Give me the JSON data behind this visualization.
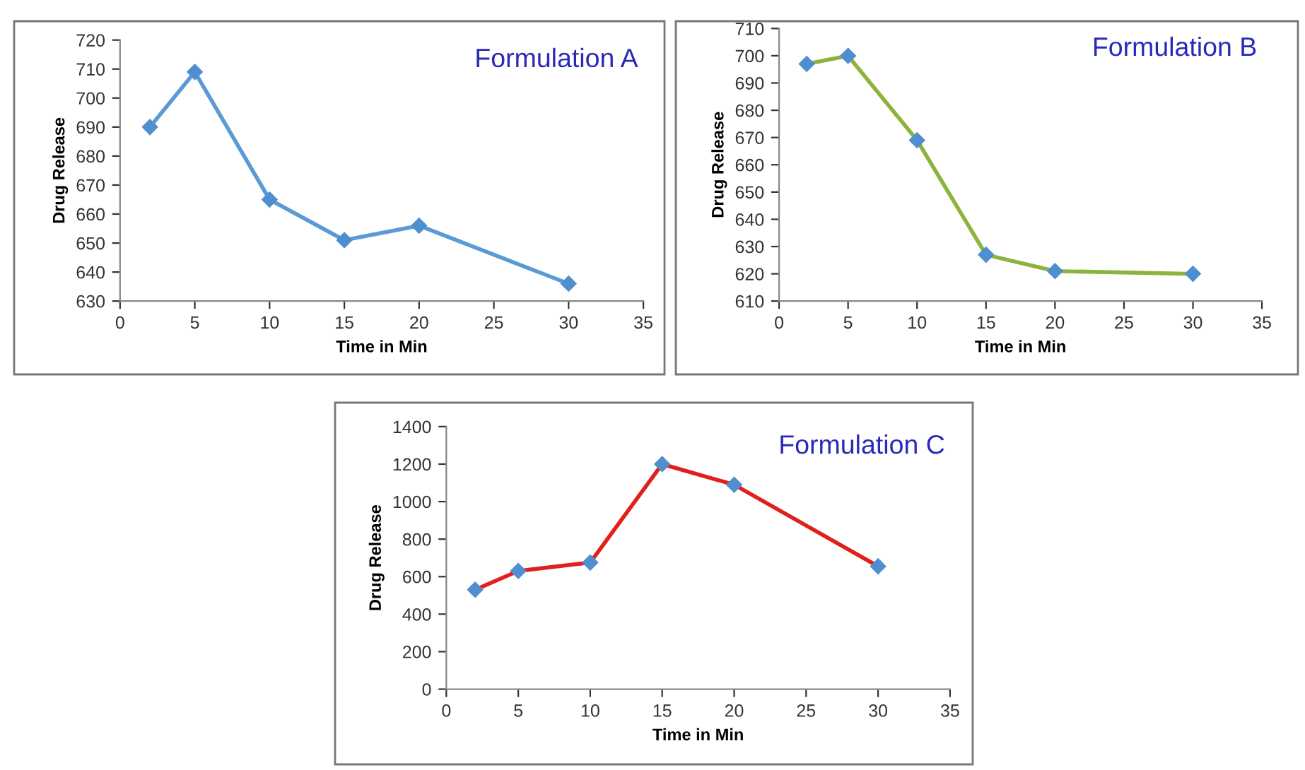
{
  "chart_data": [
    {
      "type": "line",
      "title": "Formulation A",
      "xlabel": "Time in Min",
      "ylabel": "Drug Release",
      "x": [
        2,
        5,
        10,
        15,
        20,
        30
      ],
      "series": [
        {
          "color": "#5b9bd5",
          "colors": [
            "#4f8fcf",
            "#4f8fcf",
            "#4f8fcf",
            "#4f8fcf",
            "#4f8fcf",
            "#4f8fcf"
          ],
          "values": [
            690,
            709,
            665,
            651,
            656,
            636
          ]
        }
      ],
      "xlim": [
        0,
        35
      ],
      "xticks": [
        0,
        5,
        10,
        15,
        20,
        25,
        30,
        35
      ],
      "ylim": [
        630,
        720
      ],
      "yticks": [
        630,
        640,
        650,
        660,
        670,
        680,
        690,
        700,
        710,
        720
      ],
      "marker": "diamond",
      "line_style": "solid",
      "grid": false,
      "legend": false
    },
    {
      "type": "line",
      "title": "Formulation B",
      "xlabel": "Time in Min",
      "ylabel": "Drug Release",
      "x": [
        2,
        5,
        10,
        15,
        20,
        30
      ],
      "series": [
        {
          "color": "#8cb43c",
          "colors": [
            "#4f8fcf",
            "#4f8fcf",
            "#4f8fcf",
            "#4f8fcf",
            "#4f8fcf",
            "#4f8fcf"
          ],
          "values": [
            697,
            700,
            669,
            627,
            621,
            620
          ]
        }
      ],
      "xlim": [
        0,
        35
      ],
      "xticks": [
        0,
        5,
        10,
        15,
        20,
        25,
        30,
        35
      ],
      "ylim": [
        610,
        710
      ],
      "yticks": [
        610,
        620,
        630,
        640,
        650,
        660,
        670,
        680,
        690,
        700,
        710
      ],
      "marker": "diamond",
      "line_style": "solid",
      "grid": false,
      "legend": false
    },
    {
      "type": "line",
      "title": "Formulation C",
      "xlabel": "Time in Min",
      "ylabel": "Drug Release",
      "x": [
        2,
        5,
        10,
        15,
        20,
        30
      ],
      "series": [
        {
          "color": "#e0201c",
          "colors": [
            "#4f8fcf",
            "#4f8fcf",
            "#4f8fcf",
            "#4f8fcf",
            "#4f8fcf",
            "#4f8fcf"
          ],
          "values": [
            530,
            630,
            675,
            1200,
            1090,
            655
          ]
        }
      ],
      "xlim": [
        0,
        35
      ],
      "xticks": [
        0,
        5,
        10,
        15,
        20,
        25,
        30,
        35
      ],
      "ylim": [
        0,
        1400
      ],
      "yticks": [
        0,
        200,
        400,
        600,
        800,
        1000,
        1200,
        1400
      ],
      "marker": "diamond",
      "line_style": "solid",
      "grid": false,
      "legend": false
    }
  ]
}
